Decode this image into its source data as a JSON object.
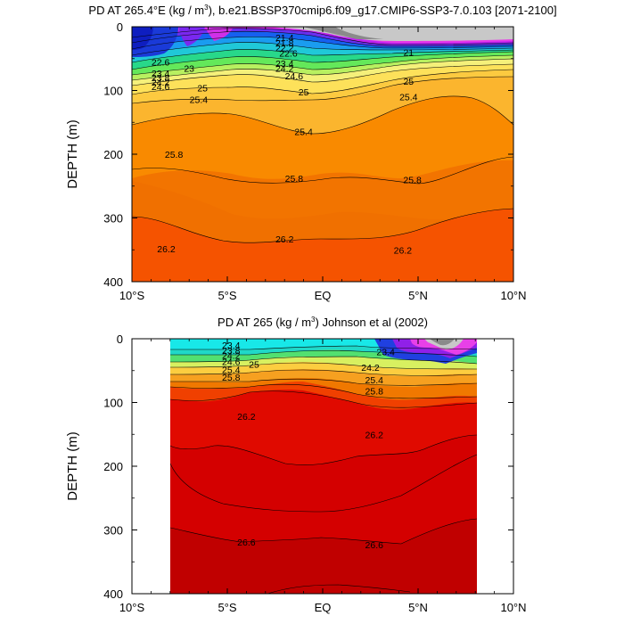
{
  "chart_data": [
    {
      "type": "contour",
      "title_prefix": "PD AT 265.4°E (kg / m",
      "title_sup": "3",
      "title_suffix": "), b.e21.BSSP370cmip6.f09_g17.CMIP6-SSP3-7.0.103 [2071-2100]",
      "ylabel": "DEPTH (m)",
      "x_ticks": [
        "10°S",
        "5°S",
        "EQ",
        "5°N",
        "10°N"
      ],
      "x_tick_values": [
        -10,
        -5,
        0,
        5,
        10
      ],
      "y_ticks": [
        "0",
        "100",
        "200",
        "300",
        "400"
      ],
      "y_tick_values": [
        0,
        100,
        200,
        300,
        400
      ],
      "xlim": [
        -10,
        10
      ],
      "ylim": [
        0,
        400
      ],
      "data_lat_range": [
        -10,
        10
      ],
      "contour_labels": [
        {
          "text": "21.4",
          "lat": -2.0,
          "depth": 17
        },
        {
          "text": "21.8",
          "lat": -2.0,
          "depth": 25
        },
        {
          "text": "22.2",
          "lat": -2.0,
          "depth": 33
        },
        {
          "text": "22.6",
          "lat": -1.8,
          "depth": 41
        },
        {
          "text": "22.6",
          "lat": -8.5,
          "depth": 55
        },
        {
          "text": "23",
          "lat": -7.0,
          "depth": 65
        },
        {
          "text": "23.4",
          "lat": -2.0,
          "depth": 57
        },
        {
          "text": "23.4",
          "lat": -8.5,
          "depth": 73
        },
        {
          "text": "23.8",
          "lat": -8.5,
          "depth": 80
        },
        {
          "text": "24.2",
          "lat": -2.0,
          "depth": 65
        },
        {
          "text": "24.2",
          "lat": -8.5,
          "depth": 87
        },
        {
          "text": "24.6",
          "lat": -8.5,
          "depth": 94
        },
        {
          "text": "24.6",
          "lat": -1.5,
          "depth": 77
        },
        {
          "text": "25",
          "lat": -6.3,
          "depth": 96
        },
        {
          "text": "25",
          "lat": -1.0,
          "depth": 102
        },
        {
          "text": "25",
          "lat": 4.5,
          "depth": 85
        },
        {
          "text": "25.4",
          "lat": -6.5,
          "depth": 114
        },
        {
          "text": "25.4",
          "lat": -1.0,
          "depth": 164
        },
        {
          "text": "25.4",
          "lat": 4.5,
          "depth": 110
        },
        {
          "text": "21",
          "lat": 4.5,
          "depth": 40
        },
        {
          "text": "25.8",
          "lat": -7.8,
          "depth": 200
        },
        {
          "text": "25.8",
          "lat": -1.5,
          "depth": 238
        },
        {
          "text": "25.8",
          "lat": 4.7,
          "depth": 240
        },
        {
          "text": "26.2",
          "lat": -8.2,
          "depth": 348
        },
        {
          "text": "26.2",
          "lat": -2.0,
          "depth": 333
        },
        {
          "text": "26.2",
          "lat": 4.2,
          "depth": 350
        }
      ]
    },
    {
      "type": "contour",
      "title_prefix": "PD AT 265 (kg / m",
      "title_sup": "3",
      "title_suffix": ") Johnson et al (2002)",
      "ylabel": "DEPTH (m)",
      "x_ticks": [
        "10°S",
        "5°S",
        "EQ",
        "5°N",
        "10°N"
      ],
      "x_tick_values": [
        -10,
        -5,
        0,
        5,
        10
      ],
      "y_ticks": [
        "0",
        "100",
        "200",
        "300",
        "400"
      ],
      "y_tick_values": [
        0,
        100,
        200,
        300,
        400
      ],
      "xlim": [
        -10,
        10
      ],
      "ylim": [
        0,
        400
      ],
      "data_lat_range": [
        -8,
        8
      ],
      "contour_labels": [
        {
          "text": "23.4",
          "lat": -4.8,
          "depth": 10
        },
        {
          "text": "23.8",
          "lat": -4.8,
          "depth": 18
        },
        {
          "text": "24.2",
          "lat": -4.8,
          "depth": 26
        },
        {
          "text": "24.6",
          "lat": -4.8,
          "depth": 36
        },
        {
          "text": "25",
          "lat": -3.6,
          "depth": 40
        },
        {
          "text": "25.4",
          "lat": -4.8,
          "depth": 48
        },
        {
          "text": "25.8",
          "lat": -4.8,
          "depth": 60
        },
        {
          "text": "23.4",
          "lat": 3.3,
          "depth": 20
        },
        {
          "text": "24.2",
          "lat": 2.5,
          "depth": 45
        },
        {
          "text": "25.4",
          "lat": 2.7,
          "depth": 64
        },
        {
          "text": "25.8",
          "lat": 2.7,
          "depth": 82
        },
        {
          "text": "26.2",
          "lat": -4.0,
          "depth": 122
        },
        {
          "text": "26.2",
          "lat": 2.7,
          "depth": 150
        },
        {
          "text": "26.6",
          "lat": -4.0,
          "depth": 319
        },
        {
          "text": "26.6",
          "lat": 2.7,
          "depth": 323
        }
      ]
    }
  ]
}
